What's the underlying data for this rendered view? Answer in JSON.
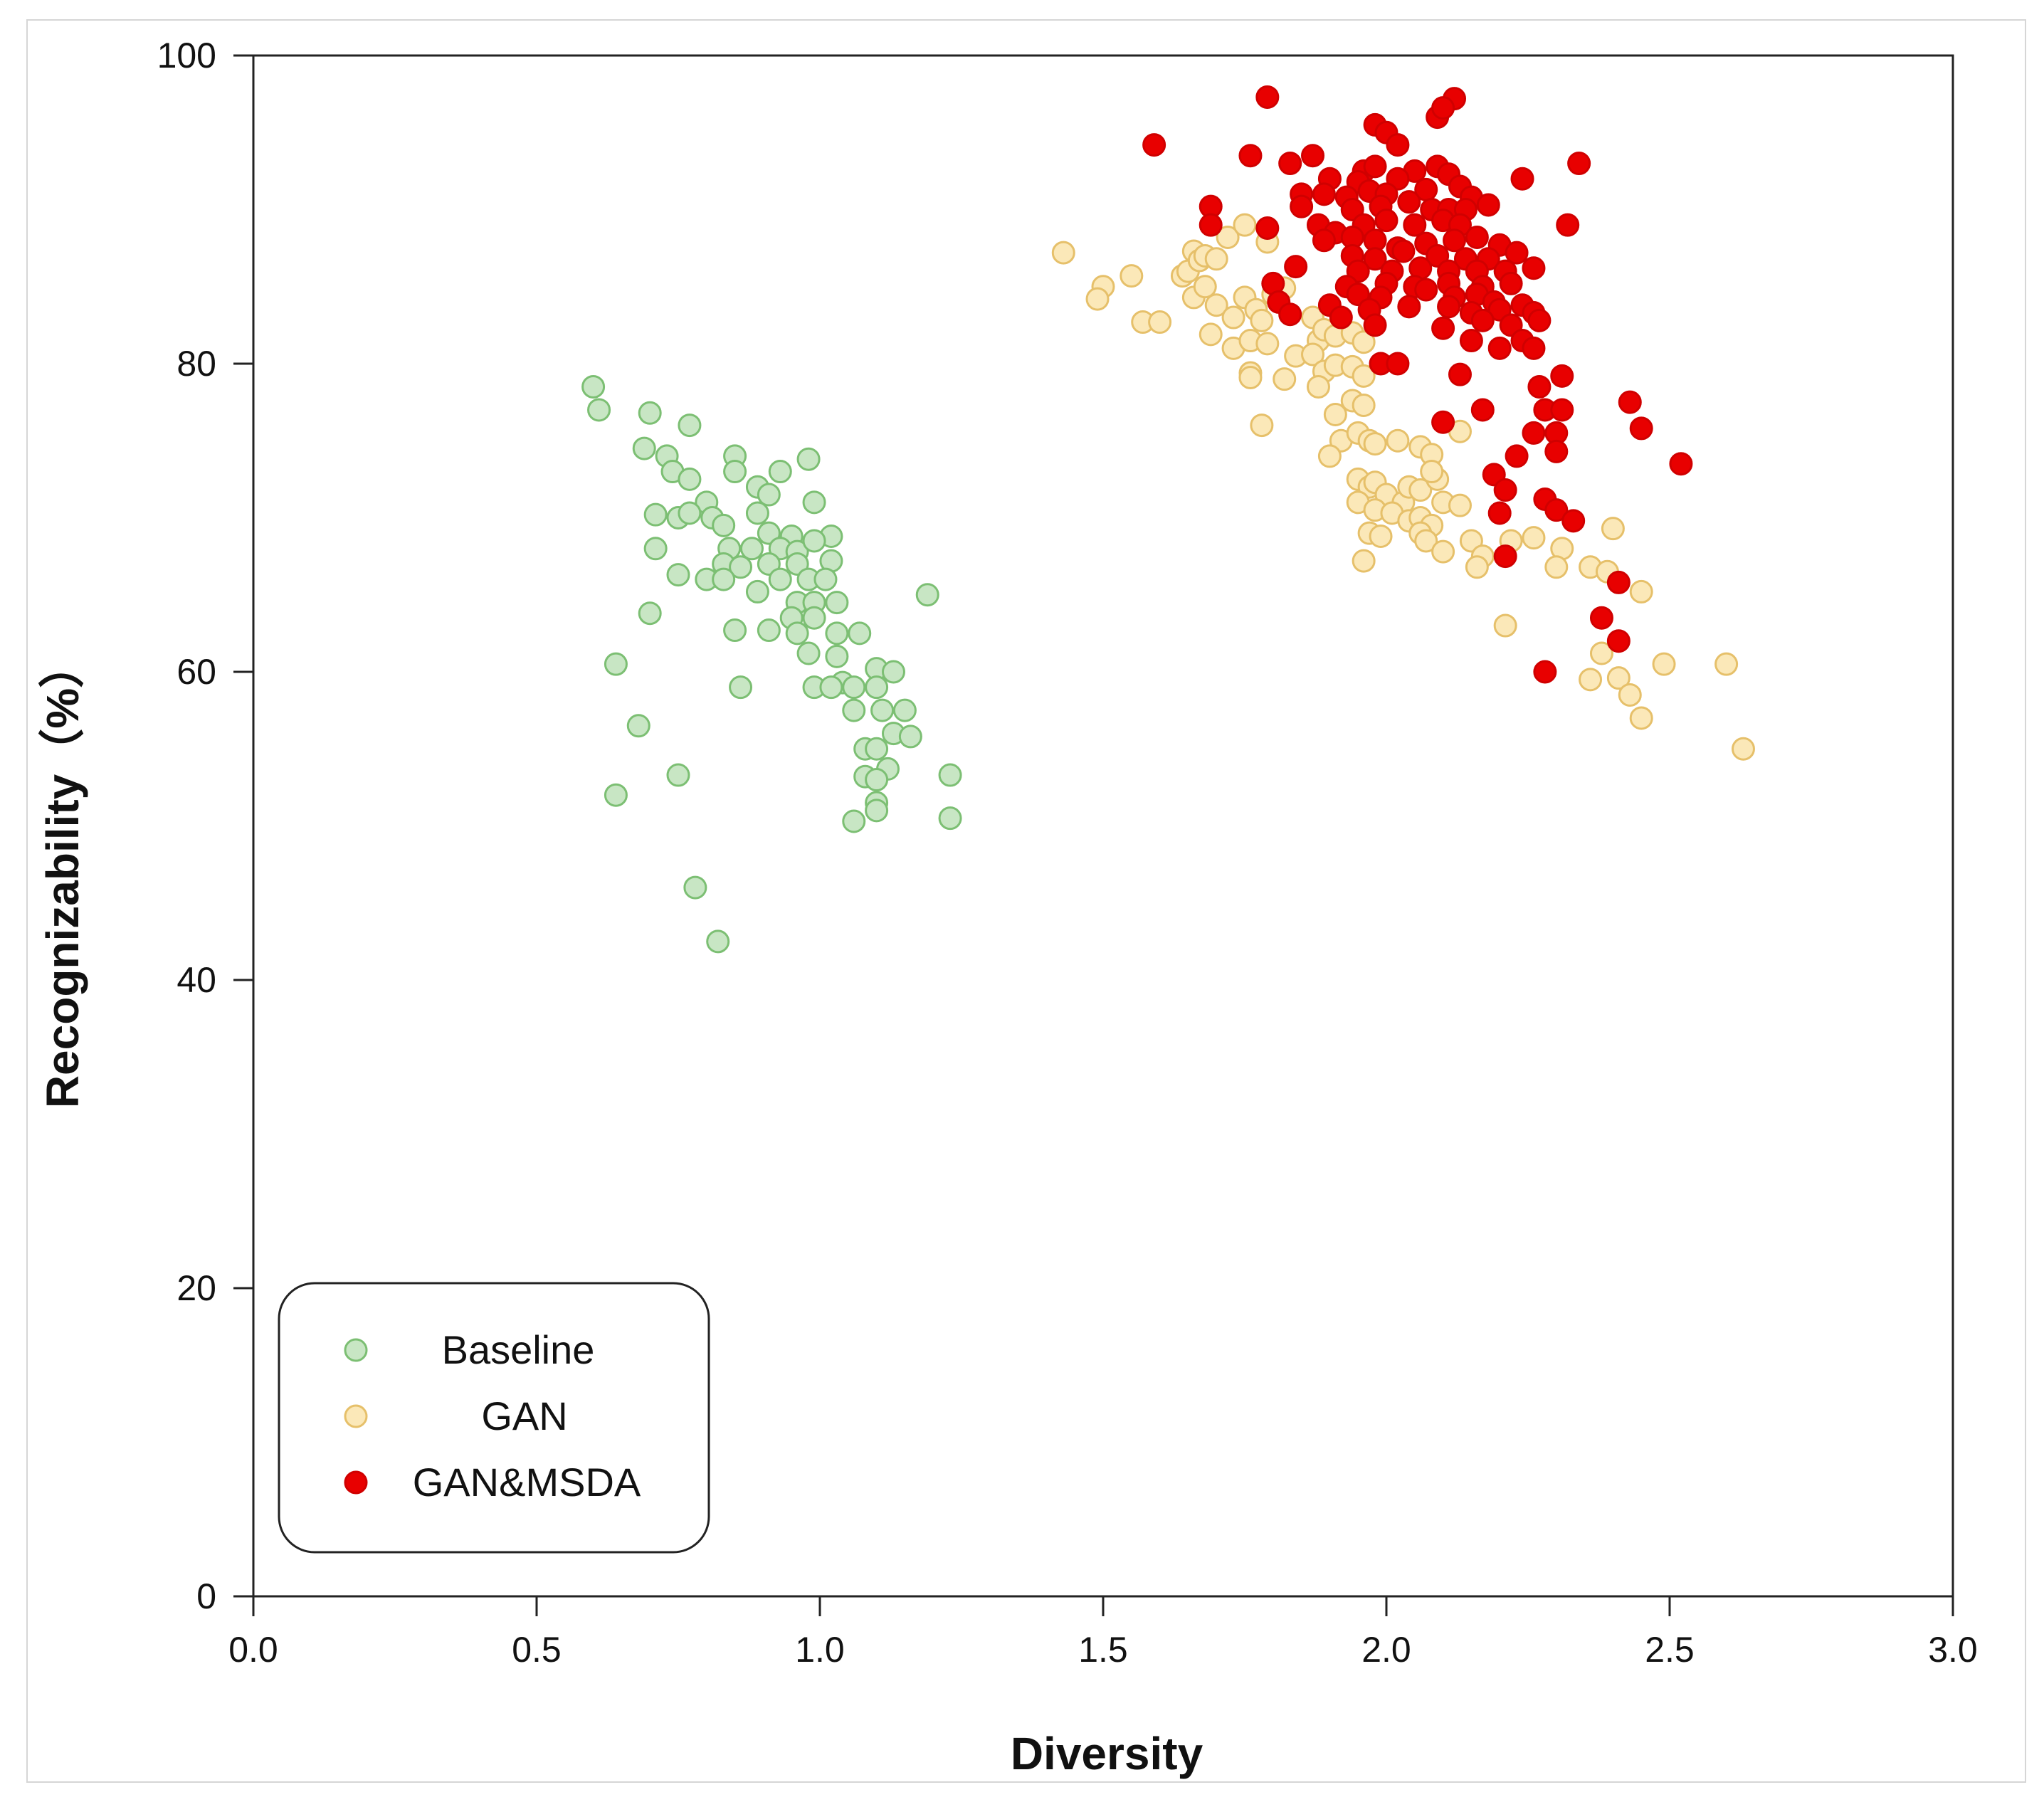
{
  "chart_data": {
    "type": "scatter",
    "title": "",
    "xlabel": "Diversity",
    "ylabel": "Recognizability（%）",
    "xlim": [
      0.0,
      3.0
    ],
    "ylim": [
      0,
      100
    ],
    "xticks": [
      "0.0",
      "0.5",
      "1.0",
      "1.5",
      "2.0",
      "2.5",
      "3.0"
    ],
    "yticks": [
      "0",
      "20",
      "40",
      "60",
      "80",
      "100"
    ],
    "grid": false,
    "legend_position": "bottom-left",
    "series": [
      {
        "name": "Baseline",
        "fill": "#c8e6c4",
        "stroke": "#7cbf73",
        "points": [
          [
            0.6,
            78.5
          ],
          [
            0.61,
            77.0
          ],
          [
            0.7,
            76.8
          ],
          [
            0.77,
            76.0
          ],
          [
            0.69,
            74.5
          ],
          [
            0.73,
            74.0
          ],
          [
            0.85,
            74.0
          ],
          [
            0.98,
            73.8
          ],
          [
            0.74,
            73.0
          ],
          [
            0.85,
            73.0
          ],
          [
            0.93,
            73.0
          ],
          [
            0.77,
            72.5
          ],
          [
            0.89,
            72.0
          ],
          [
            0.91,
            71.5
          ],
          [
            0.8,
            71.0
          ],
          [
            0.99,
            71.0
          ],
          [
            0.71,
            70.2
          ],
          [
            0.75,
            70.0
          ],
          [
            0.77,
            70.3
          ],
          [
            0.81,
            70.0
          ],
          [
            0.89,
            70.3
          ],
          [
            0.83,
            69.5
          ],
          [
            0.91,
            69.0
          ],
          [
            0.95,
            68.8
          ],
          [
            1.02,
            68.8
          ],
          [
            0.71,
            68.0
          ],
          [
            0.84,
            68.0
          ],
          [
            0.88,
            68.0
          ],
          [
            0.93,
            68.0
          ],
          [
            0.96,
            67.8
          ],
          [
            0.99,
            68.5
          ],
          [
            0.83,
            67.0
          ],
          [
            0.86,
            66.8
          ],
          [
            0.91,
            67.0
          ],
          [
            0.96,
            67.0
          ],
          [
            1.02,
            67.2
          ],
          [
            0.75,
            66.3
          ],
          [
            0.8,
            66.0
          ],
          [
            0.83,
            66.0
          ],
          [
            0.89,
            65.2
          ],
          [
            0.93,
            66.0
          ],
          [
            0.98,
            66.0
          ],
          [
            1.01,
            66.0
          ],
          [
            0.96,
            64.5
          ],
          [
            0.99,
            64.5
          ],
          [
            1.03,
            64.5
          ],
          [
            1.19,
            65.0
          ],
          [
            0.7,
            63.8
          ],
          [
            0.95,
            63.5
          ],
          [
            0.99,
            63.5
          ],
          [
            0.85,
            62.7
          ],
          [
            0.91,
            62.7
          ],
          [
            0.96,
            62.5
          ],
          [
            1.03,
            62.5
          ],
          [
            1.07,
            62.5
          ],
          [
            0.98,
            61.2
          ],
          [
            1.03,
            61.0
          ],
          [
            0.64,
            60.5
          ],
          [
            1.1,
            60.2
          ],
          [
            1.13,
            60.0
          ],
          [
            1.04,
            59.3
          ],
          [
            0.86,
            59.0
          ],
          [
            0.99,
            59.0
          ],
          [
            1.02,
            59.0
          ],
          [
            1.06,
            59.0
          ],
          [
            1.1,
            59.0
          ],
          [
            1.06,
            57.5
          ],
          [
            1.11,
            57.5
          ],
          [
            1.15,
            57.5
          ],
          [
            0.68,
            56.5
          ],
          [
            1.13,
            56.0
          ],
          [
            1.16,
            55.8
          ],
          [
            1.08,
            55.0
          ],
          [
            1.1,
            55.0
          ],
          [
            1.12,
            53.7
          ],
          [
            0.75,
            53.3
          ],
          [
            1.08,
            53.2
          ],
          [
            1.1,
            53.0
          ],
          [
            1.23,
            53.3
          ],
          [
            0.64,
            52.0
          ],
          [
            1.1,
            51.5
          ],
          [
            1.1,
            51.0
          ],
          [
            1.06,
            50.3
          ],
          [
            1.23,
            50.5
          ],
          [
            0.78,
            46.0
          ],
          [
            0.82,
            42.5
          ]
        ]
      },
      {
        "name": "GAN",
        "fill": "#fbe8b8",
        "stroke": "#e6c06a",
        "points": [
          [
            1.43,
            87.2
          ],
          [
            1.5,
            85.0
          ],
          [
            1.49,
            84.2
          ],
          [
            1.55,
            85.7
          ],
          [
            1.57,
            82.7
          ],
          [
            1.6,
            82.7
          ],
          [
            1.64,
            85.7
          ],
          [
            1.65,
            86.0
          ],
          [
            1.66,
            87.3
          ],
          [
            1.67,
            86.7
          ],
          [
            1.68,
            87.0
          ],
          [
            1.7,
            86.8
          ],
          [
            1.72,
            88.2
          ],
          [
            1.75,
            89.0
          ],
          [
            1.66,
            84.3
          ],
          [
            1.68,
            85.0
          ],
          [
            1.7,
            83.8
          ],
          [
            1.73,
            83.0
          ],
          [
            1.75,
            84.3
          ],
          [
            1.77,
            83.5
          ],
          [
            1.78,
            82.8
          ],
          [
            1.8,
            84.5
          ],
          [
            1.79,
            87.9
          ],
          [
            1.82,
            84.9
          ],
          [
            1.69,
            81.9
          ],
          [
            1.73,
            81.0
          ],
          [
            1.76,
            81.5
          ],
          [
            1.79,
            81.3
          ],
          [
            1.84,
            80.5
          ],
          [
            1.87,
            83.0
          ],
          [
            1.88,
            81.5
          ],
          [
            1.89,
            82.2
          ],
          [
            1.91,
            81.8
          ],
          [
            1.94,
            82.0
          ],
          [
            1.96,
            81.4
          ],
          [
            1.76,
            79.4
          ],
          [
            1.76,
            79.1
          ],
          [
            1.82,
            79.0
          ],
          [
            1.87,
            80.6
          ],
          [
            1.89,
            79.5
          ],
          [
            1.91,
            79.9
          ],
          [
            1.94,
            79.8
          ],
          [
            1.96,
            79.2
          ],
          [
            1.88,
            78.5
          ],
          [
            1.94,
            77.6
          ],
          [
            1.96,
            77.3
          ],
          [
            1.91,
            76.7
          ],
          [
            1.78,
            76.0
          ],
          [
            1.92,
            75.0
          ],
          [
            1.95,
            75.5
          ],
          [
            1.97,
            75.0
          ],
          [
            1.98,
            74.8
          ],
          [
            2.02,
            75.0
          ],
          [
            2.06,
            74.6
          ],
          [
            2.08,
            74.1
          ],
          [
            2.13,
            75.6
          ],
          [
            1.9,
            74.0
          ],
          [
            1.95,
            72.5
          ],
          [
            1.97,
            72.0
          ],
          [
            1.98,
            72.3
          ],
          [
            2.0,
            71.5
          ],
          [
            2.03,
            71.0
          ],
          [
            2.04,
            72.0
          ],
          [
            2.06,
            71.8
          ],
          [
            2.09,
            72.5
          ],
          [
            2.08,
            73.0
          ],
          [
            1.95,
            71.0
          ],
          [
            1.98,
            70.5
          ],
          [
            2.01,
            70.3
          ],
          [
            2.04,
            69.8
          ],
          [
            2.06,
            70.0
          ],
          [
            2.08,
            69.5
          ],
          [
            2.1,
            71.0
          ],
          [
            2.13,
            70.8
          ],
          [
            1.97,
            69.0
          ],
          [
            1.99,
            68.8
          ],
          [
            2.06,
            69.0
          ],
          [
            2.07,
            68.5
          ],
          [
            2.1,
            67.8
          ],
          [
            1.96,
            67.2
          ],
          [
            2.15,
            68.5
          ],
          [
            2.17,
            67.5
          ],
          [
            2.16,
            66.8
          ],
          [
            2.22,
            68.5
          ],
          [
            2.26,
            68.7
          ],
          [
            2.31,
            68.0
          ],
          [
            2.3,
            66.8
          ],
          [
            2.36,
            66.8
          ],
          [
            2.39,
            66.5
          ],
          [
            2.4,
            69.3
          ],
          [
            2.45,
            65.2
          ],
          [
            2.21,
            63.0
          ],
          [
            2.38,
            61.2
          ],
          [
            2.36,
            59.5
          ],
          [
            2.41,
            59.6
          ],
          [
            2.43,
            58.5
          ],
          [
            2.45,
            57.0
          ],
          [
            2.49,
            60.5
          ],
          [
            2.6,
            60.5
          ],
          [
            2.63,
            55.0
          ]
        ]
      },
      {
        "name": "GAN&MSDA",
        "fill": "#e80000",
        "stroke": "#d00000",
        "points": [
          [
            1.79,
            97.3
          ],
          [
            2.12,
            97.2
          ],
          [
            2.09,
            96.0
          ],
          [
            2.1,
            96.6
          ],
          [
            1.98,
            95.5
          ],
          [
            2.0,
            95.0
          ],
          [
            2.02,
            94.2
          ],
          [
            1.59,
            94.2
          ],
          [
            1.76,
            93.5
          ],
          [
            1.87,
            93.5
          ],
          [
            2.34,
            93.0
          ],
          [
            1.83,
            93.0
          ],
          [
            1.96,
            92.5
          ],
          [
            2.05,
            92.5
          ],
          [
            2.09,
            92.8
          ],
          [
            2.24,
            92.0
          ],
          [
            1.9,
            92.0
          ],
          [
            1.95,
            91.8
          ],
          [
            1.98,
            92.8
          ],
          [
            2.02,
            92.0
          ],
          [
            2.11,
            92.3
          ],
          [
            1.85,
            91.0
          ],
          [
            1.89,
            91.0
          ],
          [
            1.93,
            90.8
          ],
          [
            1.97,
            91.2
          ],
          [
            2.0,
            91.0
          ],
          [
            2.07,
            91.3
          ],
          [
            2.13,
            91.5
          ],
          [
            2.15,
            90.8
          ],
          [
            1.69,
            90.2
          ],
          [
            1.85,
            90.2
          ],
          [
            1.94,
            90.0
          ],
          [
            1.99,
            90.2
          ],
          [
            2.04,
            90.5
          ],
          [
            2.08,
            90.0
          ],
          [
            2.11,
            90.0
          ],
          [
            2.14,
            90.0
          ],
          [
            2.18,
            90.3
          ],
          [
            1.69,
            89.0
          ],
          [
            1.79,
            88.8
          ],
          [
            1.88,
            89.0
          ],
          [
            1.91,
            88.5
          ],
          [
            1.96,
            89.0
          ],
          [
            2.0,
            89.3
          ],
          [
            2.05,
            89.0
          ],
          [
            2.1,
            89.3
          ],
          [
            2.13,
            89.0
          ],
          [
            2.32,
            89.0
          ],
          [
            1.89,
            88.0
          ],
          [
            1.94,
            88.2
          ],
          [
            1.98,
            88.0
          ],
          [
            2.02,
            87.5
          ],
          [
            2.07,
            87.8
          ],
          [
            2.12,
            88.0
          ],
          [
            2.16,
            88.2
          ],
          [
            2.2,
            87.7
          ],
          [
            1.94,
            87.0
          ],
          [
            1.98,
            86.8
          ],
          [
            2.03,
            87.3
          ],
          [
            2.09,
            87.0
          ],
          [
            2.14,
            86.8
          ],
          [
            2.18,
            86.8
          ],
          [
            2.23,
            87.2
          ],
          [
            1.84,
            86.3
          ],
          [
            1.95,
            86.0
          ],
          [
            2.01,
            86.0
          ],
          [
            2.06,
            86.2
          ],
          [
            2.11,
            86.0
          ],
          [
            2.16,
            86.0
          ],
          [
            2.21,
            86.0
          ],
          [
            2.26,
            86.2
          ],
          [
            1.8,
            85.2
          ],
          [
            1.93,
            85.0
          ],
          [
            2.0,
            85.2
          ],
          [
            2.05,
            85.0
          ],
          [
            2.11,
            85.2
          ],
          [
            2.17,
            85.0
          ],
          [
            2.22,
            85.2
          ],
          [
            1.95,
            84.5
          ],
          [
            1.99,
            84.3
          ],
          [
            2.07,
            84.8
          ],
          [
            2.12,
            84.3
          ],
          [
            2.16,
            84.5
          ],
          [
            2.19,
            84.0
          ],
          [
            1.81,
            84.0
          ],
          [
            1.9,
            83.8
          ],
          [
            1.97,
            83.5
          ],
          [
            2.04,
            83.7
          ],
          [
            2.11,
            83.7
          ],
          [
            2.15,
            83.3
          ],
          [
            2.2,
            83.5
          ],
          [
            2.24,
            83.8
          ],
          [
            2.26,
            83.3
          ],
          [
            1.83,
            83.2
          ],
          [
            1.92,
            83.0
          ],
          [
            1.98,
            82.5
          ],
          [
            2.1,
            82.3
          ],
          [
            2.17,
            82.8
          ],
          [
            2.22,
            82.5
          ],
          [
            2.27,
            82.8
          ],
          [
            2.24,
            81.5
          ],
          [
            2.2,
            81.0
          ],
          [
            2.26,
            81.0
          ],
          [
            2.15,
            81.5
          ],
          [
            1.99,
            80.0
          ],
          [
            2.02,
            80.0
          ],
          [
            2.13,
            79.3
          ],
          [
            2.31,
            79.2
          ],
          [
            2.27,
            78.5
          ],
          [
            2.43,
            77.5
          ],
          [
            2.17,
            77.0
          ],
          [
            2.28,
            77.0
          ],
          [
            2.31,
            77.0
          ],
          [
            2.1,
            76.2
          ],
          [
            2.45,
            75.8
          ],
          [
            2.26,
            75.5
          ],
          [
            2.3,
            75.5
          ],
          [
            2.3,
            74.3
          ],
          [
            2.23,
            74.0
          ],
          [
            2.52,
            73.5
          ],
          [
            2.19,
            72.8
          ],
          [
            2.21,
            71.8
          ],
          [
            2.28,
            71.2
          ],
          [
            2.3,
            70.5
          ],
          [
            2.2,
            70.3
          ],
          [
            2.33,
            69.8
          ],
          [
            2.21,
            67.5
          ],
          [
            2.41,
            65.8
          ],
          [
            2.38,
            63.5
          ],
          [
            2.41,
            62.0
          ],
          [
            2.28,
            60.0
          ]
        ]
      }
    ]
  }
}
